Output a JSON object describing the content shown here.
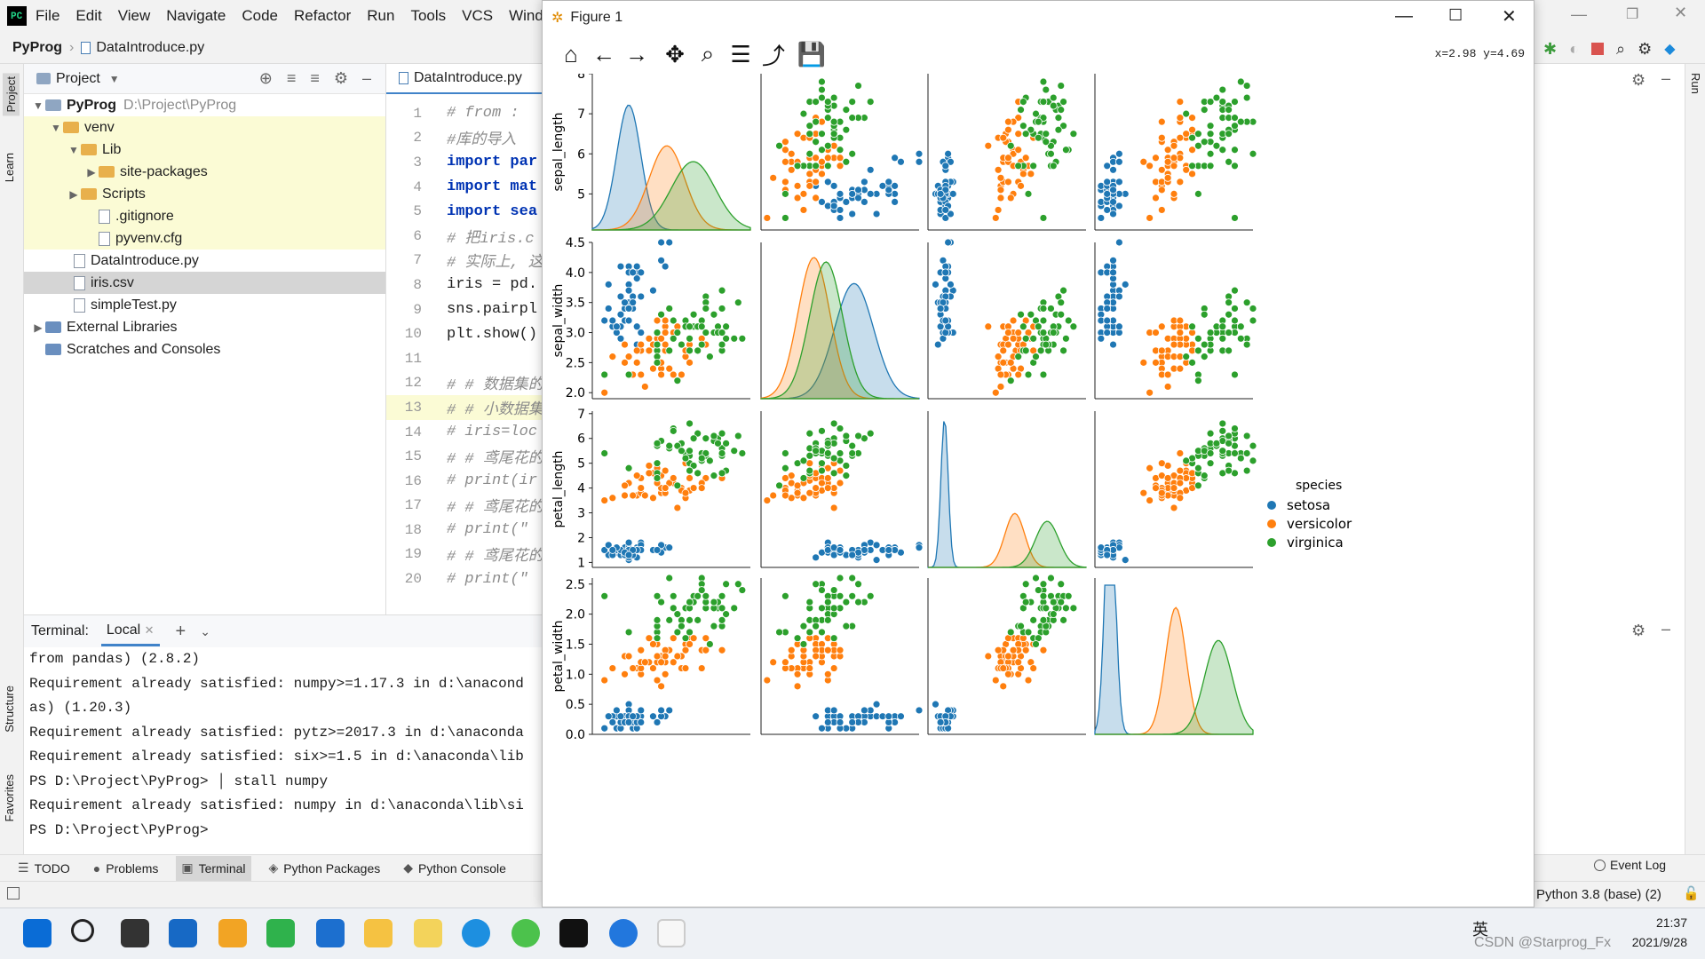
{
  "menu": {
    "items": [
      "File",
      "Edit",
      "View",
      "Navigate",
      "Code",
      "Refactor",
      "Run",
      "Tools",
      "VCS",
      "Window"
    ]
  },
  "nav": {
    "project": "PyProg",
    "file": "DataIntroduce.py"
  },
  "side_labels": {
    "project": "Project",
    "learn": "Learn",
    "structure": "Structure",
    "favorites": "Favorites",
    "run": "Run"
  },
  "project_panel": {
    "title": "Project",
    "tree": [
      {
        "name": "PyProg",
        "extra": "D:\\Project\\PyProg",
        "kind": "root"
      },
      {
        "name": "venv",
        "kind": "folder"
      },
      {
        "name": "Lib",
        "kind": "folder"
      },
      {
        "name": "site-packages",
        "kind": "folder"
      },
      {
        "name": "Scripts",
        "kind": "folder"
      },
      {
        "name": ".gitignore",
        "kind": "file"
      },
      {
        "name": "pyvenv.cfg",
        "kind": "file"
      },
      {
        "name": "DataIntroduce.py",
        "kind": "file"
      },
      {
        "name": "iris.csv",
        "kind": "file"
      },
      {
        "name": "simpleTest.py",
        "kind": "file"
      },
      {
        "name": "External Libraries",
        "kind": "lib"
      },
      {
        "name": "Scratches and Consoles",
        "kind": "lib"
      }
    ]
  },
  "editor": {
    "tab": "DataIntroduce.py",
    "lines": [
      {
        "n": "1",
        "t": "# from :",
        "c": "cm"
      },
      {
        "n": "2",
        "t": "#库的导入",
        "c": "cm"
      },
      {
        "n": "3",
        "t": "import par",
        "c": "kw"
      },
      {
        "n": "4",
        "t": "import mat",
        "c": "kw"
      },
      {
        "n": "5",
        "t": "import sea",
        "c": "kw"
      },
      {
        "n": "6",
        "t": "# 把iris.c",
        "c": "cm"
      },
      {
        "n": "7",
        "t": "# 实际上, 这",
        "c": "cm"
      },
      {
        "n": "8",
        "t": "iris = pd.",
        "c": ""
      },
      {
        "n": "9",
        "t": "sns.pairpl",
        "c": ""
      },
      {
        "n": "10",
        "t": "plt.show()",
        "c": ""
      },
      {
        "n": "11",
        "t": "",
        "c": ""
      },
      {
        "n": "12",
        "t": "# # 数据集的",
        "c": "cm"
      },
      {
        "n": "13",
        "t": "# # 小数据集",
        "c": "cm"
      },
      {
        "n": "14",
        "t": "# iris=loc",
        "c": "cm"
      },
      {
        "n": "15",
        "t": "# # 鸢尾花的",
        "c": "cm"
      },
      {
        "n": "16",
        "t": "# print(ir",
        "c": "cm"
      },
      {
        "n": "17",
        "t": "# # 鸢尾花的",
        "c": "cm"
      },
      {
        "n": "18",
        "t": "# print(\"",
        "c": "cm"
      },
      {
        "n": "19",
        "t": "# # 鸢尾花的",
        "c": "cm"
      },
      {
        "n": "20",
        "t": "# print(\"",
        "c": "cm"
      }
    ]
  },
  "terminal": {
    "label": "Terminal:",
    "tab": "Local",
    "lines": [
      "from pandas) (2.8.2)",
      "Requirement already satisfied: numpy>=1.17.3 in d:\\anacond",
      "as) (1.20.3)",
      "Requirement already satisfied: pytz>=2017.3 in d:\\anaconda",
      "Requirement already satisfied: six>=1.5 in d:\\anaconda\\lib",
      "PS D:\\Project\\PyProg> │      stall numpy",
      "Requirement already satisfied: numpy in d:\\anaconda\\lib\\si",
      "PS D:\\Project\\PyProg>"
    ]
  },
  "bottom_tabs": [
    "TODO",
    "Problems",
    "Terminal",
    "Python Packages",
    "Python Console"
  ],
  "bottom_right": {
    "event_log": "Event Log"
  },
  "status": {
    "interpreter": "Python 3.8 (base) (2)"
  },
  "figure": {
    "title": "Figure 1",
    "coords": "x=2.98  y=4.69",
    "tool_icons": [
      "home-icon",
      "back-icon",
      "forward-icon",
      "pan-icon",
      "zoom-icon",
      "configure-icon",
      "edit-curve-icon",
      "save-icon"
    ]
  },
  "taskbar": {
    "time": "21:37",
    "date": "2021/9/28",
    "ime": "英",
    "watermark": "CSDN @Starprog_Fx"
  },
  "colors": {
    "setosa": "#1f77b4",
    "versicolor": "#ff7f0e",
    "virginica": "#2ca02c",
    "accent": "#4083c9"
  },
  "chart_data": {
    "type": "scatter",
    "subtype": "seaborn pairplot with kde diagonal",
    "variables": [
      "sepal_length",
      "sepal_width",
      "petal_length",
      "petal_width"
    ],
    "axis_ticks": {
      "sepal_length": [
        5,
        6,
        7,
        8
      ],
      "sepal_width": [
        "2.0",
        "2.5",
        "3.0",
        "3.5",
        "4.0",
        "4.5"
      ],
      "petal_length": [
        1,
        2,
        3,
        4,
        5,
        6,
        7
      ],
      "petal_width": [
        "0.0",
        "0.5",
        "1.0",
        "1.5",
        "2.0",
        "2.5"
      ]
    },
    "axis_ranges": {
      "sepal_length": [
        4.1,
        8.0
      ],
      "sepal_width": [
        1.9,
        4.5
      ],
      "petal_length": [
        0.8,
        7.1
      ],
      "petal_width": [
        0.0,
        2.6
      ]
    },
    "legend": {
      "title": "species",
      "entries": [
        "setosa",
        "versicolor",
        "virginica"
      ],
      "placement": "right"
    },
    "species_stats": {
      "setosa": {
        "sepal_length": [
          5.0,
          0.35
        ],
        "sepal_width": [
          3.43,
          0.38
        ],
        "petal_length": [
          1.46,
          0.17
        ],
        "petal_width": [
          0.25,
          0.1
        ]
      },
      "versicolor": {
        "sepal_length": [
          5.94,
          0.52
        ],
        "sepal_width": [
          2.77,
          0.31
        ],
        "petal_length": [
          4.26,
          0.47
        ],
        "petal_width": [
          1.33,
          0.2
        ]
      },
      "virginica": {
        "sepal_length": [
          6.59,
          0.64
        ],
        "sepal_width": [
          2.97,
          0.32
        ],
        "petal_length": [
          5.55,
          0.55
        ],
        "petal_width": [
          2.03,
          0.27
        ]
      }
    },
    "points_per_species": 50
  }
}
